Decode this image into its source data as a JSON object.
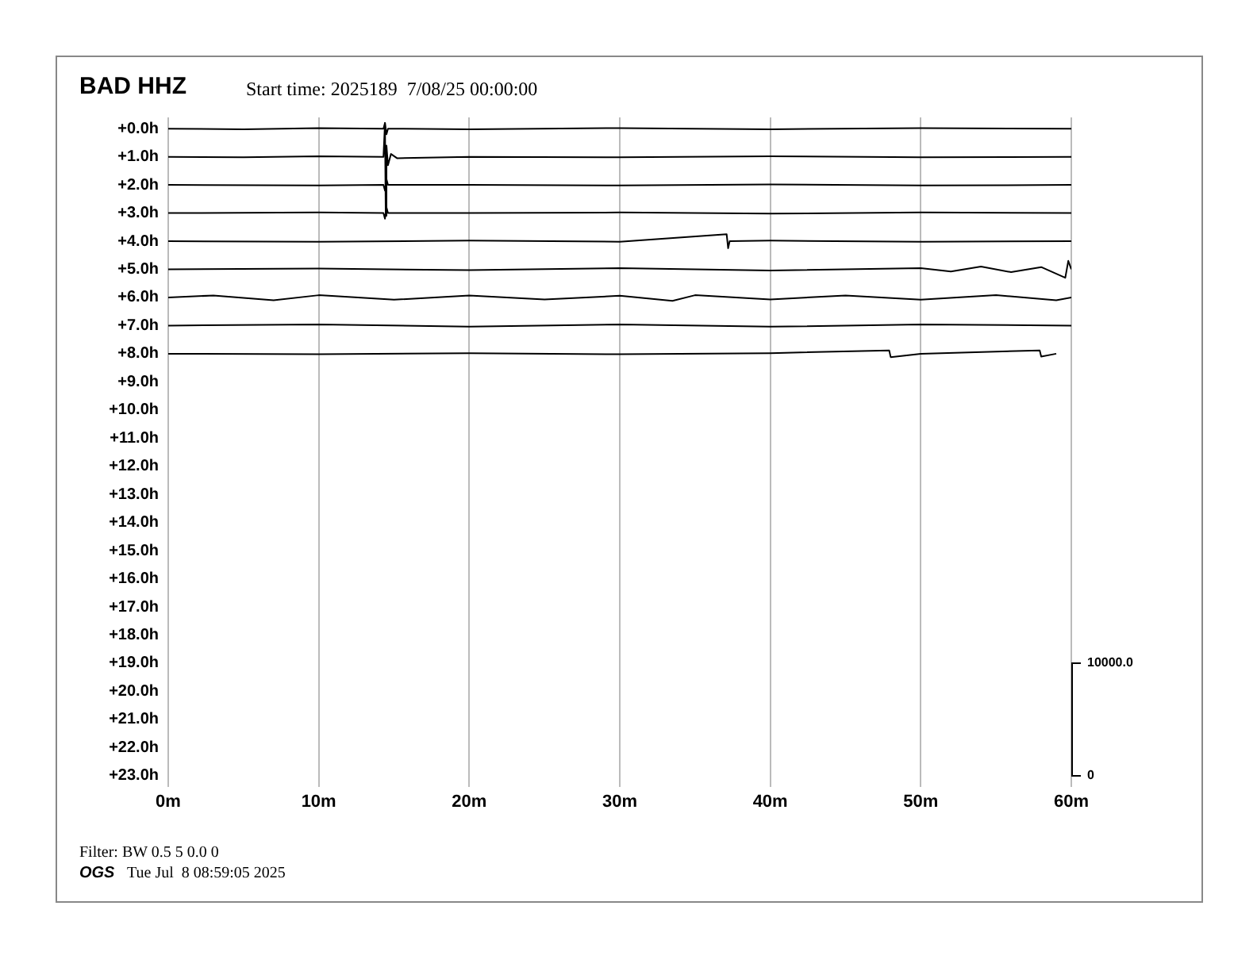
{
  "chart_data": {
    "type": "line",
    "title": "BAD HHZ",
    "subtitle": "Start time: 2025189  7/08/25 00:00:00",
    "annotations": [
      "Filter: BW 0.5 5 0.0 0",
      "OGS",
      "Tue Jul  8 08:59:05 2025"
    ],
    "xlim": [
      0,
      60
    ],
    "xticks": [
      {
        "value": 0,
        "label": "0m"
      },
      {
        "value": 10,
        "label": "10m"
      },
      {
        "value": 20,
        "label": "20m"
      },
      {
        "value": 30,
        "label": "30m"
      },
      {
        "value": 40,
        "label": "40m"
      },
      {
        "value": 50,
        "label": "50m"
      },
      {
        "value": 60,
        "label": "60m"
      }
    ],
    "ylim": [
      23.4,
      -0.4
    ],
    "yticks": [
      {
        "value": 0,
        "label": "+0.0h"
      },
      {
        "value": 1,
        "label": "+1.0h"
      },
      {
        "value": 2,
        "label": "+2.0h"
      },
      {
        "value": 3,
        "label": "+3.0h"
      },
      {
        "value": 4,
        "label": "+4.0h"
      },
      {
        "value": 5,
        "label": "+5.0h"
      },
      {
        "value": 6,
        "label": "+6.0h"
      },
      {
        "value": 7,
        "label": "+7.0h"
      },
      {
        "value": 8,
        "label": "+8.0h"
      },
      {
        "value": 9,
        "label": "+9.0h"
      },
      {
        "value": 10,
        "label": "+10.0h"
      },
      {
        "value": 11,
        "label": "+11.0h"
      },
      {
        "value": 12,
        "label": "+12.0h"
      },
      {
        "value": 13,
        "label": "+13.0h"
      },
      {
        "value": 14,
        "label": "+14.0h"
      },
      {
        "value": 15,
        "label": "+15.0h"
      },
      {
        "value": 16,
        "label": "+16.0h"
      },
      {
        "value": 17,
        "label": "+17.0h"
      },
      {
        "value": 18,
        "label": "+18.0h"
      },
      {
        "value": 19,
        "label": "+19.0h"
      },
      {
        "value": 20,
        "label": "+20.0h"
      },
      {
        "value": 21,
        "label": "+21.0h"
      },
      {
        "value": 22,
        "label": "+22.0h"
      },
      {
        "value": 23,
        "label": "+23.0h"
      }
    ],
    "y2lim": [
      -1000,
      58500
    ],
    "y2ticks": [
      {
        "value": 0,
        "label": "0"
      },
      {
        "value": 10000,
        "label": "10000.0"
      }
    ],
    "grid": "x",
    "legend": false,
    "marker": "none",
    "line_style": "solid",
    "series": [
      {
        "color": "#000000",
        "x": [
          0,
          5,
          10,
          14.3,
          14.4,
          14.5,
          14.6,
          20,
          30,
          40,
          50,
          60
        ],
        "values": [
          0,
          0.02,
          -0.02,
          0,
          -0.2,
          0.2,
          0,
          0.02,
          -0.02,
          0.02,
          -0.02,
          0
        ]
      },
      {
        "color": "#000000",
        "x": [
          0,
          5,
          10,
          14.3,
          14.4,
          14.45,
          14.5,
          14.6,
          14.8,
          15.2,
          20,
          30,
          40,
          50,
          60
        ],
        "values": [
          1,
          1.02,
          0.98,
          1,
          -0.2,
          3.1,
          0.6,
          1.3,
          0.9,
          1.05,
          1,
          1.02,
          0.98,
          1.02,
          1
        ]
      },
      {
        "color": "#000000",
        "x": [
          0,
          10,
          14.3,
          14.4,
          14.5,
          14.6,
          20,
          30,
          40,
          50,
          60
        ],
        "values": [
          2,
          2.02,
          2,
          2.2,
          1.8,
          2,
          2,
          2.02,
          1.98,
          2.02,
          2
        ]
      },
      {
        "color": "#000000",
        "x": [
          0,
          10,
          14.3,
          14.4,
          14.5,
          14.6,
          20,
          30,
          40,
          50,
          60
        ],
        "values": [
          3,
          2.98,
          3,
          3.2,
          2.8,
          3,
          3,
          2.98,
          3.02,
          2.98,
          3
        ]
      },
      {
        "color": "#000000",
        "x": [
          0,
          10,
          20,
          30,
          37.1,
          37.2,
          37.3,
          40,
          50,
          60
        ],
        "values": [
          4,
          4.02,
          3.98,
          4.02,
          3.75,
          4.25,
          4,
          3.98,
          4.02,
          4
        ]
      },
      {
        "color": "#000000",
        "x": [
          0,
          10,
          20,
          30,
          40,
          50,
          52,
          54,
          56,
          58,
          59.6,
          59.8,
          60
        ],
        "values": [
          5,
          4.97,
          5.03,
          4.96,
          5.04,
          4.96,
          5.08,
          4.9,
          5.1,
          4.92,
          5.3,
          4.7,
          5
        ]
      },
      {
        "color": "#000000",
        "x": [
          0,
          3,
          7,
          10,
          15,
          20,
          25,
          30,
          33.5,
          35,
          40,
          45,
          50,
          55,
          59,
          60
        ],
        "values": [
          6,
          5.93,
          6.1,
          5.92,
          6.08,
          5.93,
          6.07,
          5.94,
          6.12,
          5.92,
          6.07,
          5.93,
          6.08,
          5.92,
          6.1,
          6
        ]
      },
      {
        "color": "#000000",
        "x": [
          0,
          10,
          20,
          30,
          40,
          50,
          60
        ],
        "values": [
          7,
          6.96,
          7.04,
          6.96,
          7.04,
          6.96,
          7
        ]
      },
      {
        "color": "#000000",
        "x": [
          0,
          10,
          20,
          30,
          40,
          47.9,
          48,
          50,
          57.9,
          58,
          59
        ],
        "values": [
          8,
          8.02,
          7.98,
          8.02,
          7.98,
          7.88,
          8.12,
          8,
          7.88,
          8.1,
          8
        ]
      }
    ]
  }
}
